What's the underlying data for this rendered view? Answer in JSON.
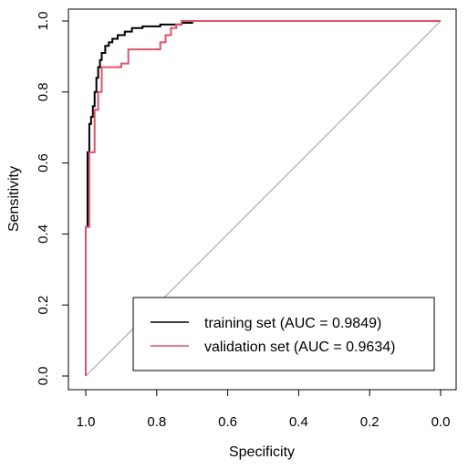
{
  "chart_data": {
    "type": "line",
    "title": "",
    "xlabel": "Specificity",
    "ylabel": "Sensitivity",
    "x_reversed": true,
    "xlim": [
      1.0,
      0.0
    ],
    "ylim": [
      0.0,
      1.0
    ],
    "x_ticks": [
      "1.0",
      "0.8",
      "0.6",
      "0.4",
      "0.2",
      "0.0"
    ],
    "x_tick_values": [
      1.0,
      0.8,
      0.6,
      0.4,
      0.2,
      0.0
    ],
    "y_ticks": [
      "0.0",
      "0.2",
      "0.4",
      "0.6",
      "0.8",
      "1.0"
    ],
    "y_tick_values": [
      0.0,
      0.2,
      0.4,
      0.6,
      0.8,
      1.0
    ],
    "grid": false,
    "legend_position": "bottom-right",
    "diagonal": {
      "color": "#a0a0a0",
      "from": [
        1.0,
        0.0
      ],
      "to": [
        0.0,
        1.0
      ]
    },
    "series": [
      {
        "name": "training set (AUC = 0.9849)",
        "color": "#000000",
        "points": [
          [
            1.0,
            0.0
          ],
          [
            1.0,
            0.42
          ],
          [
            0.995,
            0.42
          ],
          [
            0.995,
            0.63
          ],
          [
            0.99,
            0.63
          ],
          [
            0.99,
            0.71
          ],
          [
            0.985,
            0.71
          ],
          [
            0.985,
            0.73
          ],
          [
            0.98,
            0.73
          ],
          [
            0.98,
            0.76
          ],
          [
            0.975,
            0.76
          ],
          [
            0.975,
            0.8
          ],
          [
            0.97,
            0.8
          ],
          [
            0.97,
            0.84
          ],
          [
            0.965,
            0.84
          ],
          [
            0.965,
            0.87
          ],
          [
            0.96,
            0.87
          ],
          [
            0.96,
            0.89
          ],
          [
            0.955,
            0.89
          ],
          [
            0.955,
            0.91
          ],
          [
            0.945,
            0.91
          ],
          [
            0.945,
            0.93
          ],
          [
            0.935,
            0.93
          ],
          [
            0.935,
            0.94
          ],
          [
            0.925,
            0.94
          ],
          [
            0.925,
            0.95
          ],
          [
            0.91,
            0.95
          ],
          [
            0.91,
            0.96
          ],
          [
            0.89,
            0.96
          ],
          [
            0.89,
            0.97
          ],
          [
            0.87,
            0.97
          ],
          [
            0.87,
            0.98
          ],
          [
            0.84,
            0.98
          ],
          [
            0.84,
            0.985
          ],
          [
            0.79,
            0.985
          ],
          [
            0.79,
            0.99
          ],
          [
            0.73,
            0.99
          ],
          [
            0.73,
            0.995
          ],
          [
            0.7,
            0.995
          ],
          [
            0.7,
            1.0
          ],
          [
            0.49,
            1.0
          ]
        ]
      },
      {
        "name": "validation set (AUC = 0.9634)",
        "color": "#df536b",
        "points": [
          [
            1.0,
            0.0
          ],
          [
            1.0,
            0.42
          ],
          [
            0.99,
            0.42
          ],
          [
            0.99,
            0.63
          ],
          [
            0.975,
            0.63
          ],
          [
            0.975,
            0.75
          ],
          [
            0.965,
            0.75
          ],
          [
            0.965,
            0.8
          ],
          [
            0.955,
            0.8
          ],
          [
            0.955,
            0.87
          ],
          [
            0.9,
            0.87
          ],
          [
            0.9,
            0.88
          ],
          [
            0.88,
            0.88
          ],
          [
            0.88,
            0.92
          ],
          [
            0.79,
            0.92
          ],
          [
            0.79,
            0.94
          ],
          [
            0.775,
            0.94
          ],
          [
            0.775,
            0.96
          ],
          [
            0.76,
            0.96
          ],
          [
            0.76,
            0.98
          ],
          [
            0.745,
            0.98
          ],
          [
            0.745,
            0.99
          ],
          [
            0.73,
            0.99
          ],
          [
            0.73,
            1.0
          ],
          [
            0.0,
            1.0
          ]
        ]
      }
    ]
  }
}
